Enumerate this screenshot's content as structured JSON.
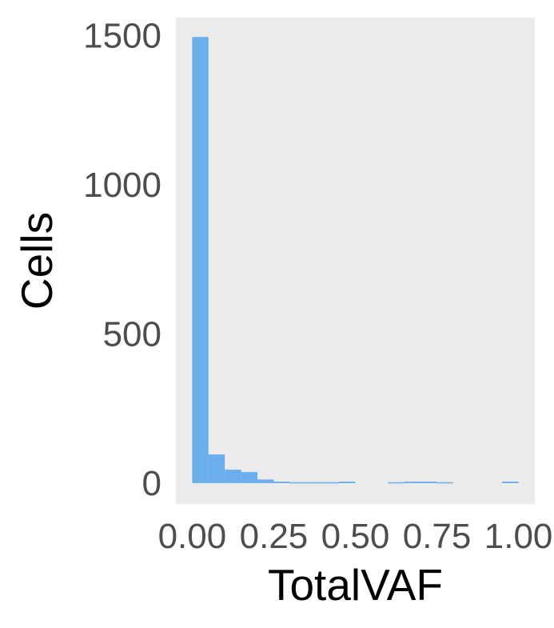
{
  "chart_data": {
    "type": "bar",
    "subtype": "histogram",
    "xlabel": "TotalVAF",
    "ylabel": "Cells",
    "xlim": [
      -0.05,
      1.05
    ],
    "ylim": [
      -70,
      1560
    ],
    "x_ticks": [
      0.0,
      0.25,
      0.5,
      0.75,
      1.0
    ],
    "x_tick_labels": [
      "0.00",
      "0.25",
      "0.50",
      "0.75",
      "1.00"
    ],
    "y_ticks": [
      0,
      500,
      1000,
      1500
    ],
    "y_tick_labels": [
      "0",
      "500",
      "1000",
      "1500"
    ],
    "grid": false,
    "bin_width": 0.05,
    "bins": [
      {
        "x0": 0.0,
        "x1": 0.05,
        "count": 1495
      },
      {
        "x0": 0.05,
        "x1": 0.1,
        "count": 96
      },
      {
        "x0": 0.1,
        "x1": 0.15,
        "count": 45
      },
      {
        "x0": 0.15,
        "x1": 0.2,
        "count": 37
      },
      {
        "x0": 0.2,
        "x1": 0.25,
        "count": 12
      },
      {
        "x0": 0.25,
        "x1": 0.3,
        "count": 5
      },
      {
        "x0": 0.3,
        "x1": 0.35,
        "count": 3
      },
      {
        "x0": 0.35,
        "x1": 0.4,
        "count": 3
      },
      {
        "x0": 0.4,
        "x1": 0.45,
        "count": 3
      },
      {
        "x0": 0.45,
        "x1": 0.5,
        "count": 5
      },
      {
        "x0": 0.5,
        "x1": 0.55,
        "count": 0
      },
      {
        "x0": 0.55,
        "x1": 0.6,
        "count": 0
      },
      {
        "x0": 0.6,
        "x1": 0.65,
        "count": 3
      },
      {
        "x0": 0.65,
        "x1": 0.7,
        "count": 5
      },
      {
        "x0": 0.7,
        "x1": 0.75,
        "count": 5
      },
      {
        "x0": 0.75,
        "x1": 0.8,
        "count": 3
      },
      {
        "x0": 0.8,
        "x1": 0.85,
        "count": 0
      },
      {
        "x0": 0.85,
        "x1": 0.9,
        "count": 0
      },
      {
        "x0": 0.9,
        "x1": 0.95,
        "count": 0
      },
      {
        "x0": 0.95,
        "x1": 1.0,
        "count": 5
      }
    ],
    "colors": {
      "bar": "#6aaeec",
      "panel": "#ebebeb",
      "tick_text": "#4d4d4d",
      "title_text": "#000000"
    }
  }
}
